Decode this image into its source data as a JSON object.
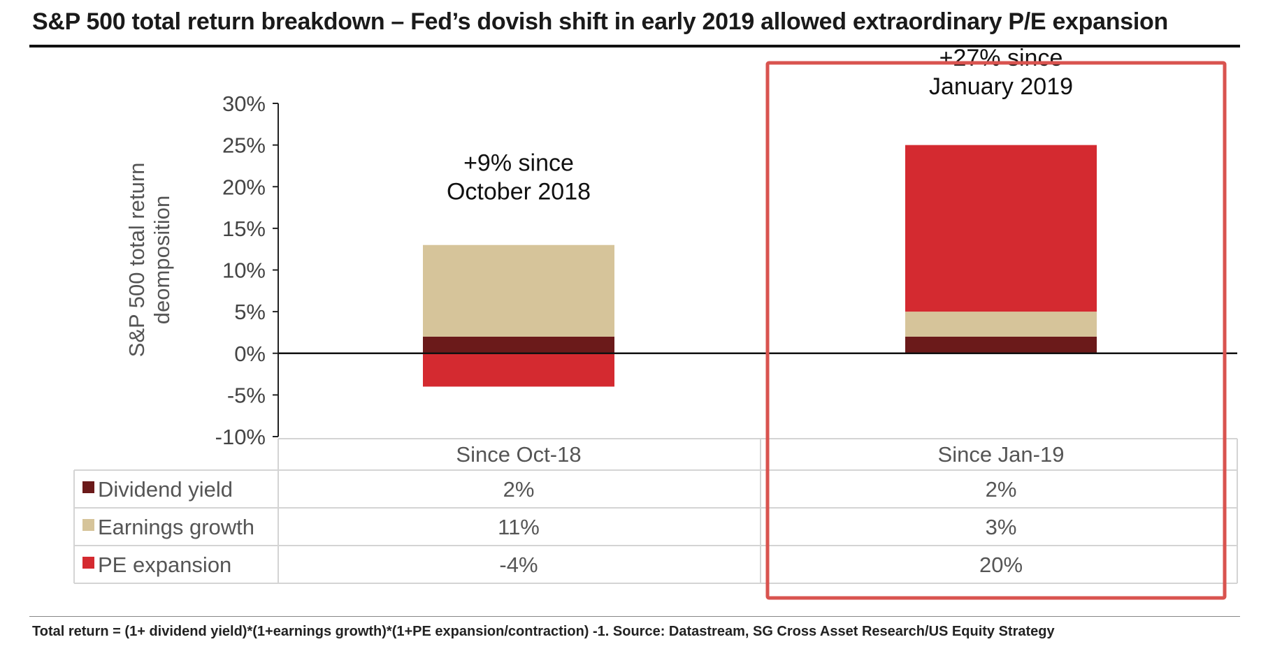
{
  "title": "S&P 500 total return breakdown – Fed’s dovish shift in early 2019 allowed extraordinary P/E expansion",
  "footnote": "Total return = (1+ dividend yield)*(1+earnings growth)*(1+PE expansion/contraction) -1. Source: Datastream, SG Cross Asset Research/US Equity Strategy",
  "chart_data": {
    "type": "bar",
    "stacked": true,
    "ylabel_lines": [
      "S&P 500 total return",
      "deomposition"
    ],
    "ylim": [
      -10,
      30
    ],
    "yticks": [
      30,
      25,
      20,
      15,
      10,
      5,
      0,
      -5,
      -10
    ],
    "ytick_labels": [
      "30%",
      "25%",
      "20%",
      "15%",
      "10%",
      "5%",
      "0%",
      "-5%",
      "-10%"
    ],
    "categories": [
      "Since Oct-18",
      "Since Jan-19"
    ],
    "series": [
      {
        "name": "Dividend yield",
        "color": "#6b1a1a",
        "values": [
          2,
          2
        ],
        "labels": [
          "2%",
          "2%"
        ]
      },
      {
        "name": "Earnings growth",
        "color": "#d6c49a",
        "values": [
          11,
          3
        ],
        "labels": [
          "11%",
          "3%"
        ]
      },
      {
        "name": "PE expansion",
        "color": "#d42a30",
        "values": [
          -4,
          20
        ],
        "labels": [
          "-4%",
          "20%"
        ]
      }
    ],
    "annotations": [
      {
        "lines": [
          "+9% since",
          "October 2018"
        ]
      },
      {
        "lines": [
          "+27% since",
          "January 2019"
        ]
      }
    ],
    "highlight_color": "#d9534f",
    "grid": false
  }
}
